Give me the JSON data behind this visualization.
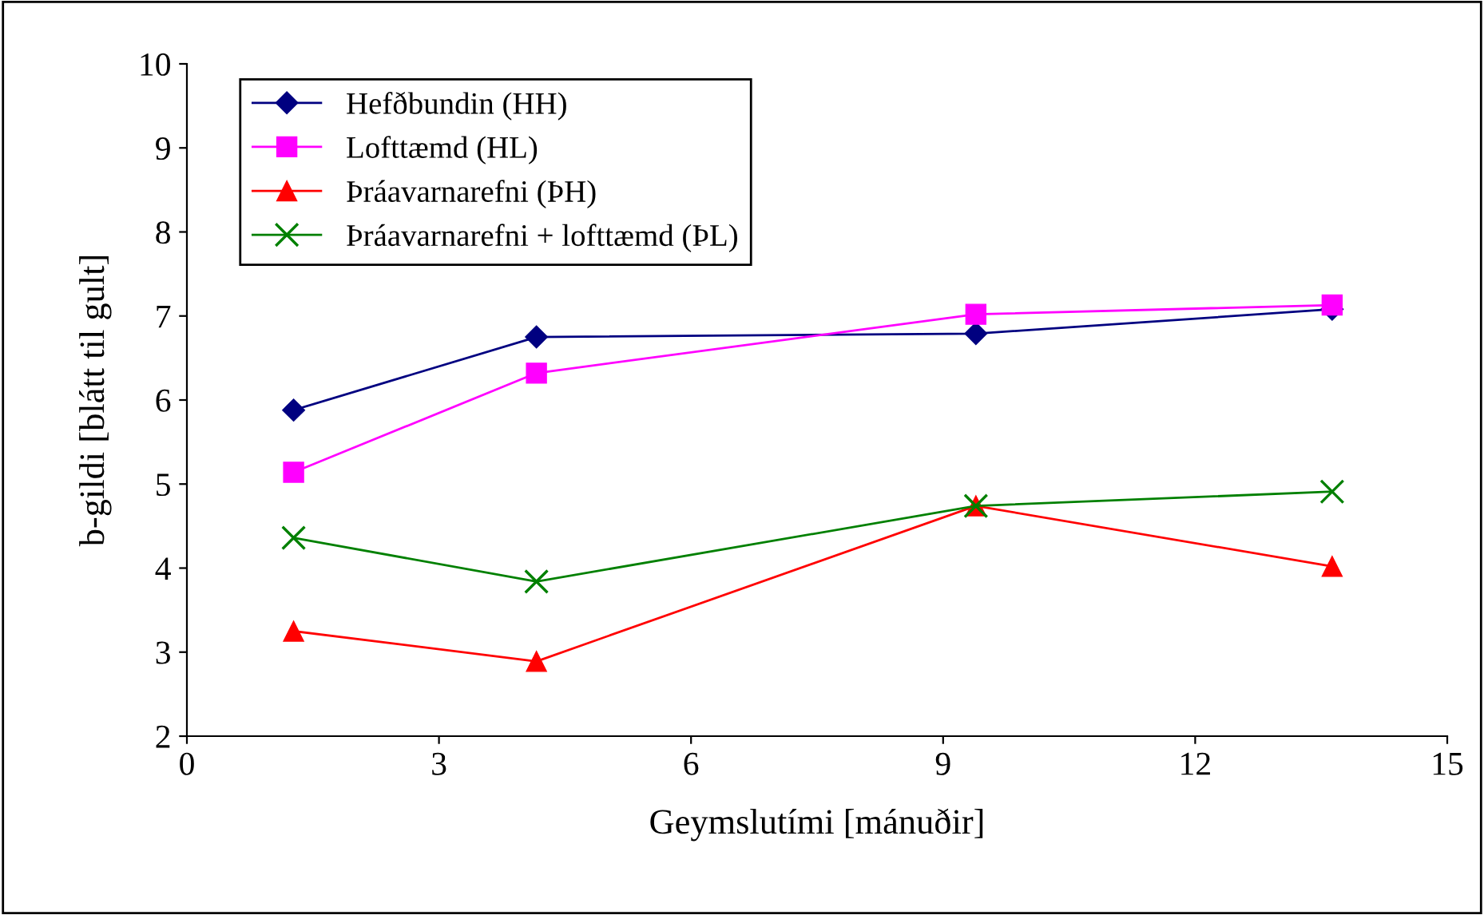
{
  "chart_data": {
    "type": "line",
    "xlabel": "Geymslutími [mánuðir]",
    "ylabel": "b-gildi [blátt til gult]",
    "xlim": [
      0,
      15
    ],
    "xticks": [
      0,
      3,
      6,
      9,
      12,
      15
    ],
    "ylim": [
      2,
      10
    ],
    "yticks": [
      2,
      3,
      4,
      5,
      6,
      7,
      8,
      9,
      10
    ],
    "grid": false,
    "legend": "top left",
    "series": [
      {
        "name": "Hefðbundin (HH)",
        "color": "#000080",
        "marker": "diamond",
        "x": [
          1.27,
          4.16,
          9.39,
          13.63
        ],
        "values": [
          5.88,
          6.75,
          6.79,
          7.08
        ]
      },
      {
        "name": "Lofttæmd (HL)",
        "color": "#ff00ff",
        "marker": "square",
        "x": [
          1.27,
          4.16,
          9.39,
          13.63
        ],
        "values": [
          5.14,
          6.32,
          7.02,
          7.13
        ]
      },
      {
        "name": "Þráavarnarefni (ÞH)",
        "color": "#ff0000",
        "marker": "triangle",
        "x": [
          1.27,
          4.16,
          9.39,
          13.63
        ],
        "values": [
          3.25,
          2.89,
          4.74,
          4.02
        ]
      },
      {
        "name": "Þráavarnarefni + lofttæmd (ÞL)",
        "color": "#008000",
        "marker": "cross",
        "x": [
          1.27,
          4.16,
          9.39,
          13.63
        ],
        "values": [
          4.36,
          3.84,
          4.74,
          4.91
        ]
      }
    ]
  }
}
